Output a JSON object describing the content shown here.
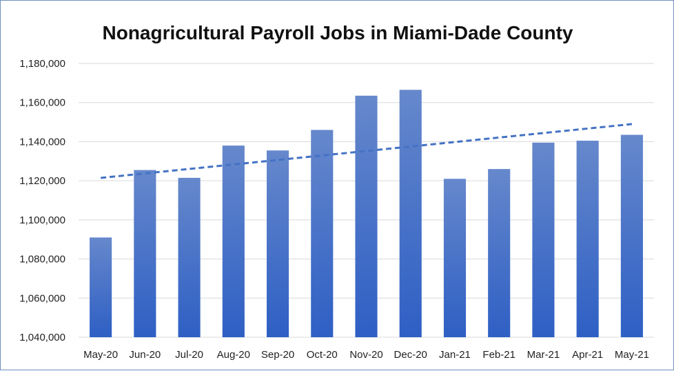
{
  "chart_data": {
    "type": "bar",
    "title": "Nonagricultural Payroll Jobs in Miami-Dade County",
    "xlabel": "",
    "ylabel": "",
    "categories": [
      "May-20",
      "Jun-20",
      "Jul-20",
      "Aug-20",
      "Sep-20",
      "Oct-20",
      "Nov-20",
      "Dec-20",
      "Jan-21",
      "Feb-21",
      "Mar-21",
      "Apr-21",
      "May-21"
    ],
    "values": [
      1091000,
      1125500,
      1121500,
      1138000,
      1135500,
      1146000,
      1163500,
      1166500,
      1121000,
      1126000,
      1139500,
      1140500,
      1143500
    ],
    "ylim": [
      1040000,
      1180000
    ],
    "yticks": [
      1040000,
      1060000,
      1080000,
      1100000,
      1120000,
      1140000,
      1160000,
      1180000
    ],
    "ytick_labels": [
      "1,040,000",
      "1,060,000",
      "1,080,000",
      "1,100,000",
      "1,120,000",
      "1,140,000",
      "1,160,000",
      "1,180,000"
    ],
    "trendline": {
      "type": "linear",
      "style": "dashed"
    },
    "grid": true,
    "legend": "none",
    "colors": {
      "bar_top": "#6688cc",
      "bar_bottom": "#2e5fc4",
      "trend": "#4472c4",
      "grid": "#d9d9d9",
      "border": "#6f8fbf"
    }
  }
}
